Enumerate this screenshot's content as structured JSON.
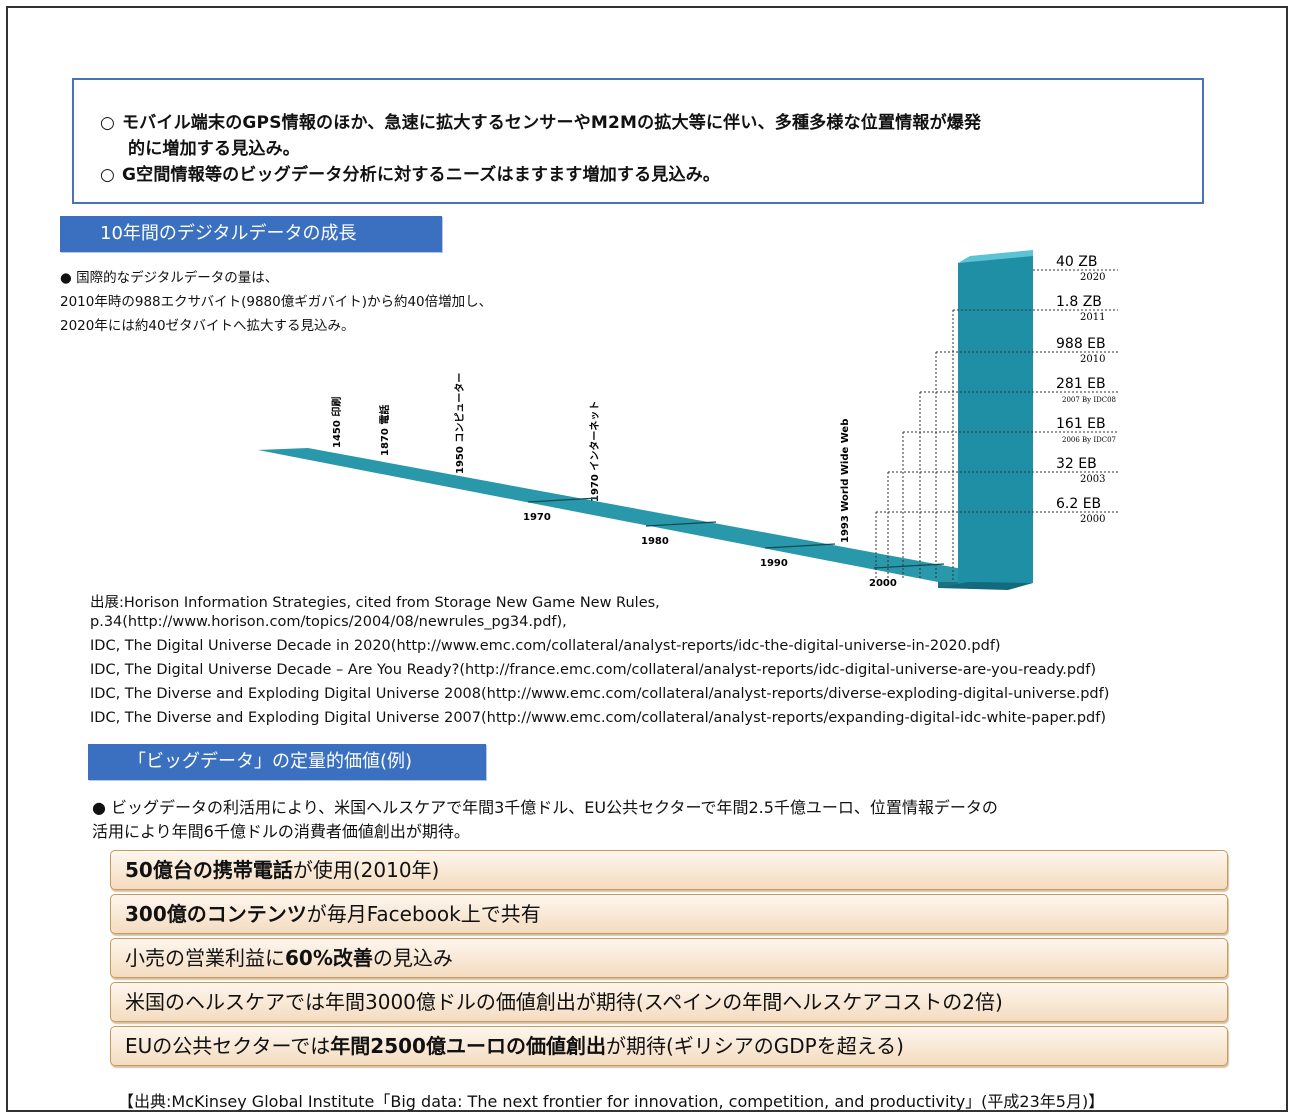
{
  "summary": {
    "line1": "モバイル端末のGPS情報のほか、急速に拡大するセンサーやM2Mの拡大等に伴い、多種多様な位置情報が爆発",
    "line1_cont": "的に増加する見込み。",
    "line2": "G空間情報等のビッグデータ分析に対するニーズはますます増加する見込み。",
    "bullet": "○"
  },
  "section1": {
    "tab": "10年間のデジタルデータの成長",
    "note_line1": "●  国際的なデジタルデータの量は、",
    "note_line2": "2010年時の988エクサバイト(9880億ギガバイト)から約40倍増加し、",
    "note_line3": "2020年には約40ゼタバイトへ拡大する見込み。"
  },
  "chart_data": {
    "type": "bar",
    "events": [
      {
        "label": "1450 印刷"
      },
      {
        "label": "1870 電話"
      },
      {
        "label": "1950 コンピューター"
      },
      {
        "label": "1970 インターネット"
      },
      {
        "label": "1993 World Wide Web"
      }
    ],
    "decades": [
      "1970",
      "1980",
      "1990",
      "2000"
    ],
    "values": [
      {
        "value": "40 ZB",
        "year": "2020"
      },
      {
        "value": "1.8 ZB",
        "year": "2011"
      },
      {
        "value": "988 EB",
        "year": "2010"
      },
      {
        "value": "281 EB",
        "year": "2007 By IDC08"
      },
      {
        "value": "161 EB",
        "year": "2006 By IDC07"
      },
      {
        "value": "32 EB",
        "year": "2003"
      },
      {
        "value": "6.2 EB",
        "year": "2000"
      }
    ],
    "colors": {
      "bar_front": "#1f8fa6",
      "bar_top": "#5cc3d4",
      "bar_side": "#126a7c",
      "timeline": "#2a98ab"
    }
  },
  "sources": [
    "出展:Horison Information Strategies, cited from Storage New Game New Rules,",
    "p.34(http://www.horison.com/topics/2004/08/newrules_pg34.pdf),",
    "IDC, The Digital Universe Decade in 2020(http://www.emc.com/collateral/analyst-reports/idc-the-digital-universe-in-2020.pdf)",
    "IDC, The Digital Universe Decade – Are You Ready?(http://france.emc.com/collateral/analyst-reports/idc-digital-universe-are-you-ready.pdf)",
    "IDC, The Diverse and Exploding Digital Universe 2008(http://www.emc.com/collateral/analyst-reports/diverse-exploding-digital-universe.pdf)",
    "IDC, The Diverse and Exploding Digital Universe 2007(http://www.emc.com/collateral/analyst-reports/expanding-digital-idc-white-paper.pdf)"
  ],
  "section2": {
    "tab": "「ビッグデータ」の定量的価値(例)",
    "note_line1": "●  ビッグデータの利活用により、米国ヘルスケアで年間3千億ドル、EU公共セクターで年間2.5千億ユーロ、位置情報データの",
    "note_line2": "活用により年間6千億ドルの消費者価値創出が期待。"
  },
  "value_boxes": [
    {
      "bold": "50億台の携帯電話",
      "rest": "が使用(2010年)"
    },
    {
      "bold": "300億のコンテンツ",
      "rest": "が毎月Facebook上で共有"
    },
    {
      "pre": "小売の営業利益に",
      "bold": "60%改善",
      "rest": "の見込み"
    },
    {
      "pre": "米国のヘルスケアでは年間3000億ドルの価値創出が期待(スペインの年間ヘルスケアコストの2倍)"
    },
    {
      "pre": "EUの公共セクターでは",
      "bold": "年間2500億ユーロの価値創出",
      "rest": "が期待(ギリシアのGDPを超える)"
    }
  ],
  "footnote": "【出典:McKinsey Global Institute「Big data: The next frontier for innovation, competition, and productivity」(平成23年5月)】"
}
